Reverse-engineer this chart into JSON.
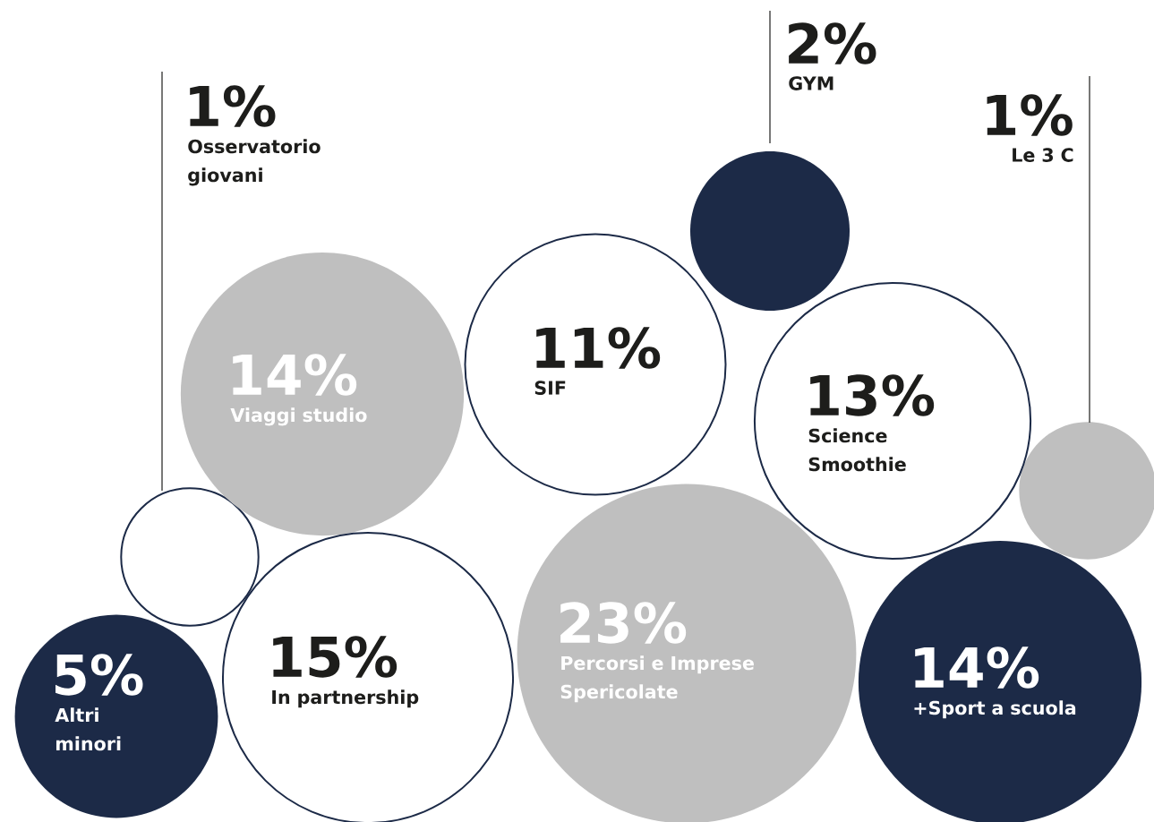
{
  "chart_data": {
    "type": "other",
    "categories": [
      "Osservatorio giovani",
      "GYM",
      "Le 3 C",
      "Viaggi studio",
      "SIF",
      "Science Smoothie",
      "Altri minori",
      "In partnership",
      "Percorsi e Imprese Spericolate",
      "+Sport a scuola"
    ],
    "values": [
      1,
      2,
      1,
      14,
      11,
      13,
      5,
      15,
      23,
      14
    ],
    "value_labels": [
      "1%",
      "2%",
      "1%",
      "14%",
      "11%",
      "13%",
      "5%",
      "15%",
      "23%",
      "14%"
    ],
    "colors": [
      "#ffffff",
      "#1c2a47",
      "#bfbfbf",
      "#bfbfbf",
      "#ffffff",
      "#ffffff",
      "#1c2a47",
      "#ffffff",
      "#bfbfbf",
      "#1c2a47"
    ]
  }
}
